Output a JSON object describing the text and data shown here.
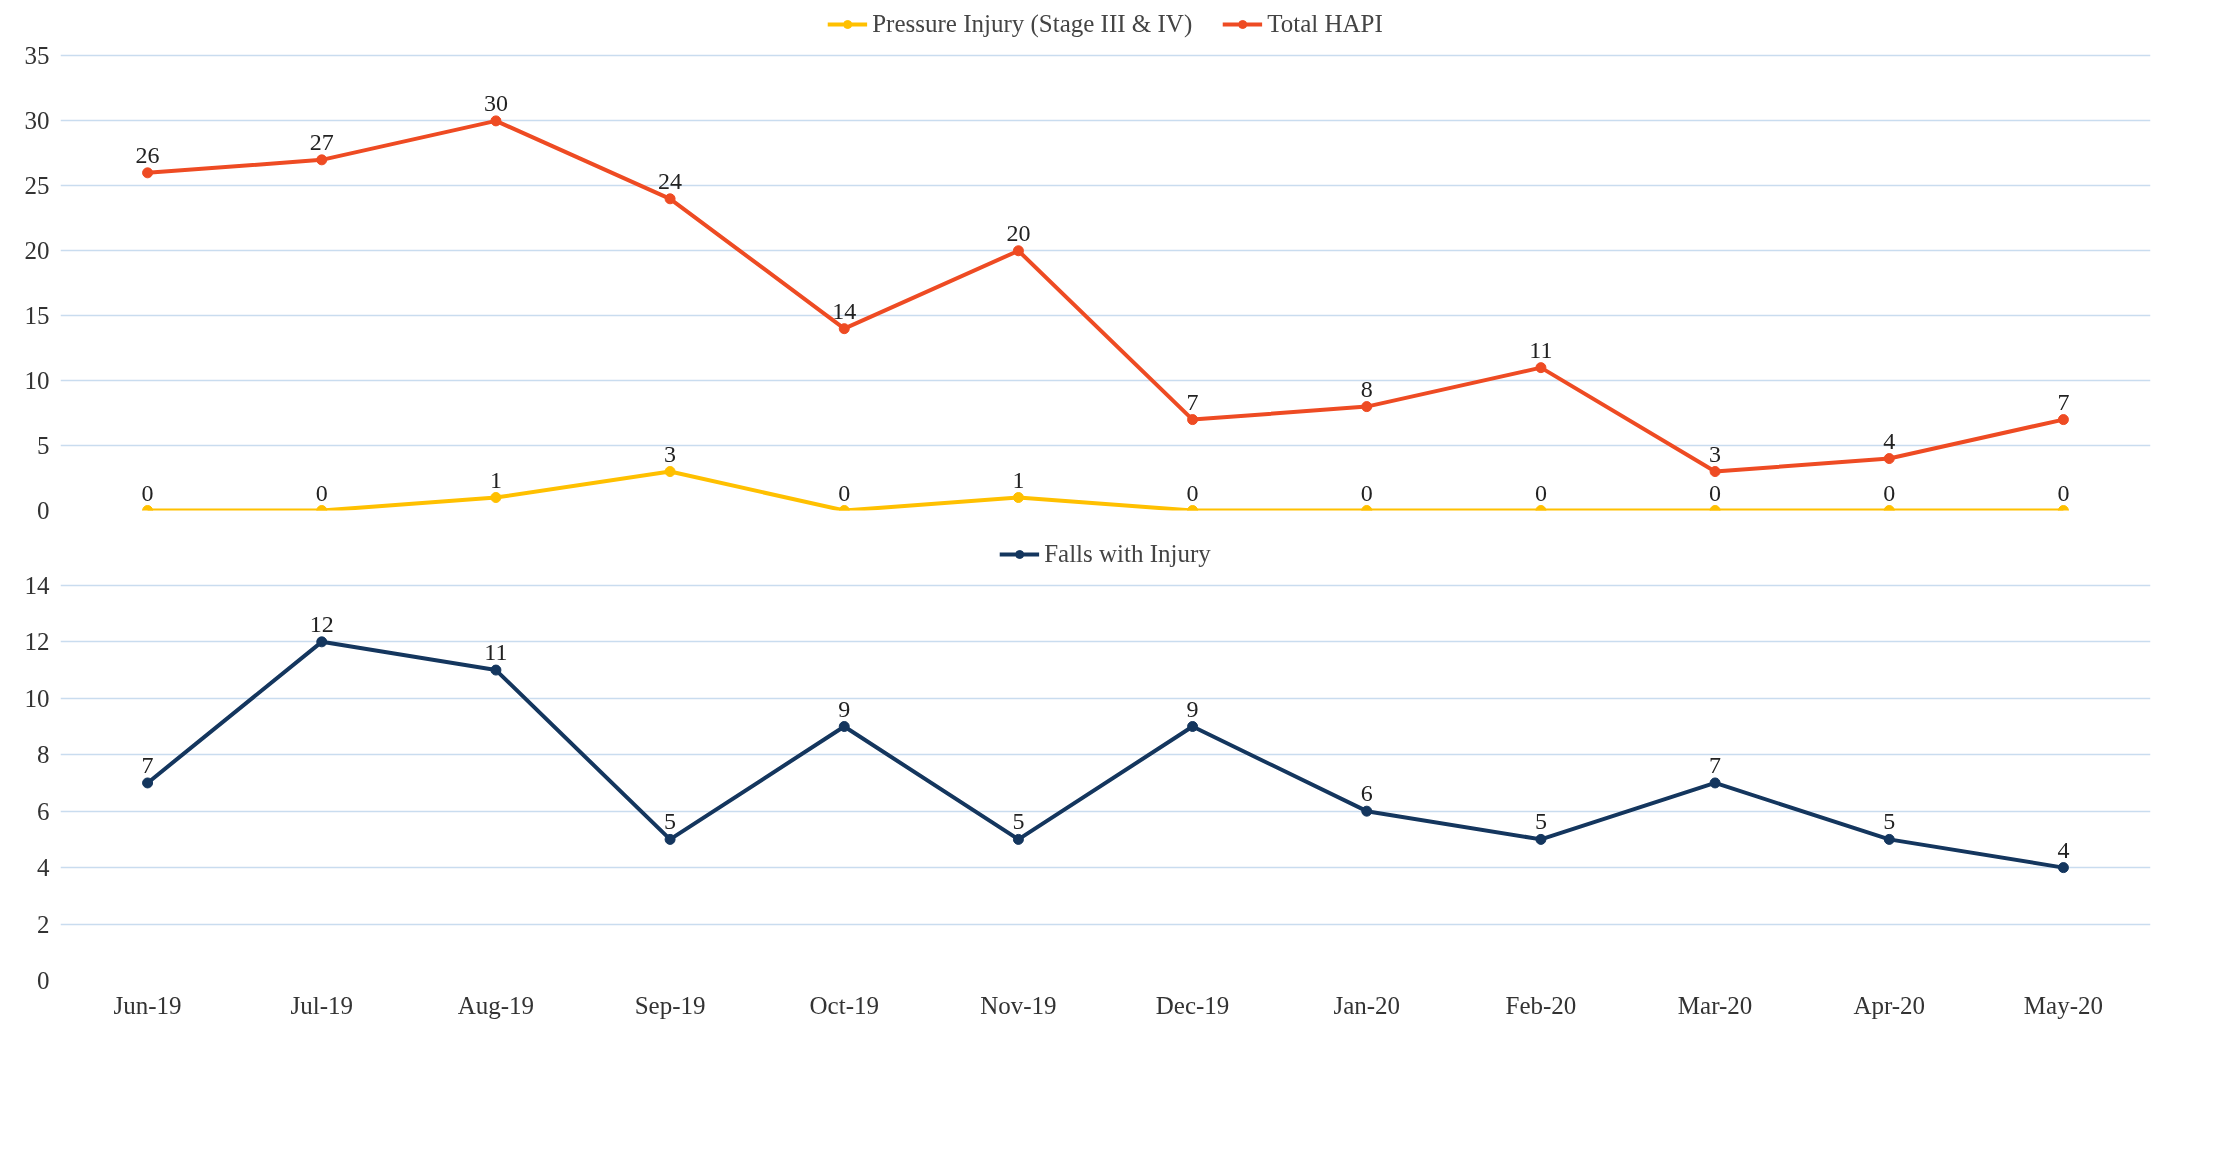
{
  "chart_data": [
    {
      "type": "line",
      "categories": [
        null,
        null,
        null,
        null,
        null,
        null,
        null,
        null,
        null,
        null,
        null,
        null
      ],
      "series": [
        {
          "name": "Pressure Injury (Stage III & IV)",
          "color": "#ffc000",
          "values": [
            0,
            0,
            1,
            3,
            0,
            1,
            0,
            0,
            0,
            0,
            0,
            0
          ]
        },
        {
          "name": "Total HAPI",
          "color": "#ee4b23",
          "values": [
            26,
            27,
            30,
            24,
            14,
            20,
            7,
            8,
            11,
            3,
            4,
            7
          ]
        }
      ],
      "ylim": [
        0,
        35
      ],
      "yticks": [
        0,
        5,
        10,
        15,
        20,
        25,
        30,
        35
      ],
      "grid": "y",
      "legend": "top",
      "marker": "circle",
      "data_labels": true,
      "tick_labels": "y"
    },
    {
      "type": "line",
      "categories": [
        "Jun-19",
        "Jul-19",
        "Aug-19",
        "Sep-19",
        "Oct-19",
        "Nov-19",
        "Dec-19",
        "Jan-20",
        "Feb-20",
        "Mar-20",
        "Apr-20",
        "May-20"
      ],
      "series": [
        {
          "name": "Falls with Injury",
          "color": "#14365e",
          "values": [
            7,
            12,
            11,
            5,
            9,
            5,
            9,
            6,
            5,
            7,
            5,
            4
          ]
        }
      ],
      "ylim": [
        0,
        14
      ],
      "yticks": [
        0,
        2,
        4,
        6,
        8,
        10,
        12,
        14
      ],
      "grid": "y",
      "legend": "top",
      "marker": "circle",
      "data_labels": true
    }
  ]
}
